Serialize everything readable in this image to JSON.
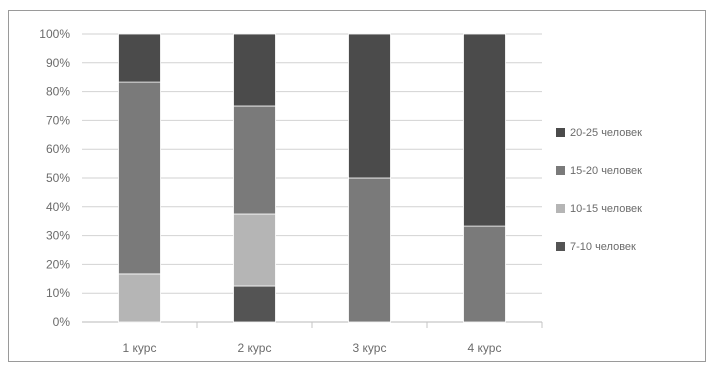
{
  "chart_data": {
    "type": "bar",
    "stacked": true,
    "percent": true,
    "categories": [
      "1 курс",
      "2 курс",
      "3 курс",
      "4 курс"
    ],
    "series": [
      {
        "name": "7-10 человек",
        "values": [
          0,
          12.5,
          0,
          0
        ],
        "color": "#545454"
      },
      {
        "name": "10-15 человек",
        "values": [
          16.7,
          25,
          0,
          0
        ],
        "color": "#b5b5b5"
      },
      {
        "name": "15-20 человек",
        "values": [
          66.6,
          37.5,
          50,
          33.3
        ],
        "color": "#7a7a7a"
      },
      {
        "name": "20-25 человек",
        "values": [
          16.7,
          25,
          50,
          66.7
        ],
        "color": "#4b4b4b"
      }
    ],
    "y_ticks": [
      "0%",
      "10%",
      "20%",
      "30%",
      "40%",
      "50%",
      "60%",
      "70%",
      "80%",
      "90%",
      "100%"
    ],
    "ylim": [
      0,
      100
    ],
    "grid": true,
    "legend_position": "right",
    "title": "",
    "xlabel": "",
    "ylabel": ""
  }
}
